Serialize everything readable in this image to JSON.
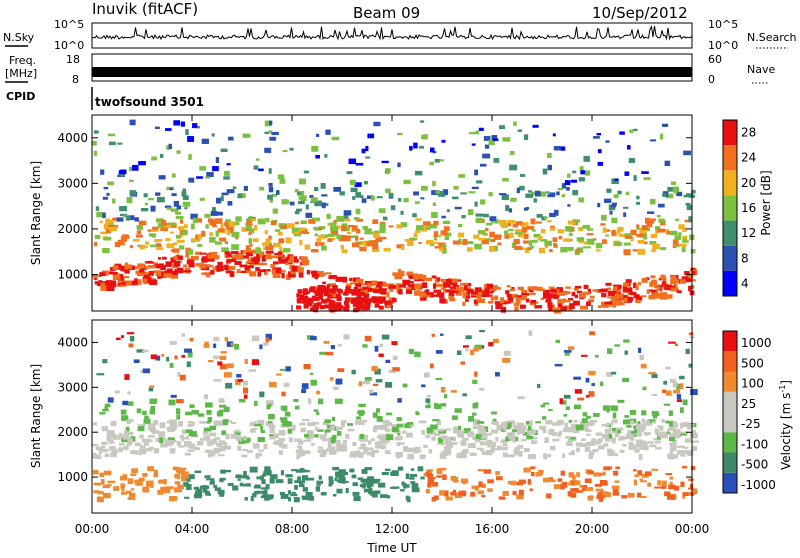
{
  "header": {
    "station": "Inuvik (fitACF)",
    "beam": "Beam 09",
    "date": "10/Sep/2012"
  },
  "side_labels": {
    "nsky": "N.Sky",
    "nsky_ticks": [
      "10^5",
      "10^0"
    ],
    "nsearch": "N.Search",
    "nsearch_ticks": [
      "10^5",
      "10^0"
    ],
    "freq_line1": "Freq.",
    "freq_line2": "[MHz]",
    "freq_ticks": [
      "18",
      "8"
    ],
    "nave": "Nave",
    "nave_ticks": [
      "60",
      "0"
    ],
    "cpid": "CPID",
    "cpid_value": "twofsound 3501"
  },
  "chart_data": [
    {
      "type": "heatmap",
      "ylabel": "Slant Range [km]",
      "yticks": [
        "1000",
        "2000",
        "3000",
        "4000"
      ],
      "ylim": [
        200,
        4500
      ],
      "xlim": [
        "00:00",
        "24:00"
      ],
      "colorbar_label": "Power [dB]",
      "colorbar_ticks": [
        "4",
        "8",
        "12",
        "16",
        "20",
        "24",
        "28"
      ],
      "colors": [
        "#0000ff",
        "#2a50b0",
        "#3f8f6f",
        "#7cc040",
        "#f0b020",
        "#f07020",
        "#e81010"
      ]
    },
    {
      "type": "heatmap",
      "ylabel": "Slant Range [km]",
      "yticks": [
        "1000",
        "2000",
        "3000",
        "4000"
      ],
      "ylim": [
        200,
        4500
      ],
      "xlim": [
        "00:00",
        "24:00"
      ],
      "xlabel": "Time UT",
      "xticks": [
        "00:00",
        "04:00",
        "08:00",
        "12:00",
        "16:00",
        "20:00",
        "00:00"
      ],
      "colorbar_label": "Velocity [m s",
      "colorbar_superscript": "-1",
      "colorbar_unit_end": "]",
      "colorbar_ticks": [
        "1000",
        "500",
        "100",
        "25",
        "-25",
        "-100",
        "-500",
        "-1000"
      ],
      "colors": [
        "#2850b8",
        "#3c8a6a",
        "#5cb848",
        "#c8c8c0",
        "#c8c8c0",
        "#f08a30",
        "#f06020",
        "#e81010"
      ]
    }
  ]
}
